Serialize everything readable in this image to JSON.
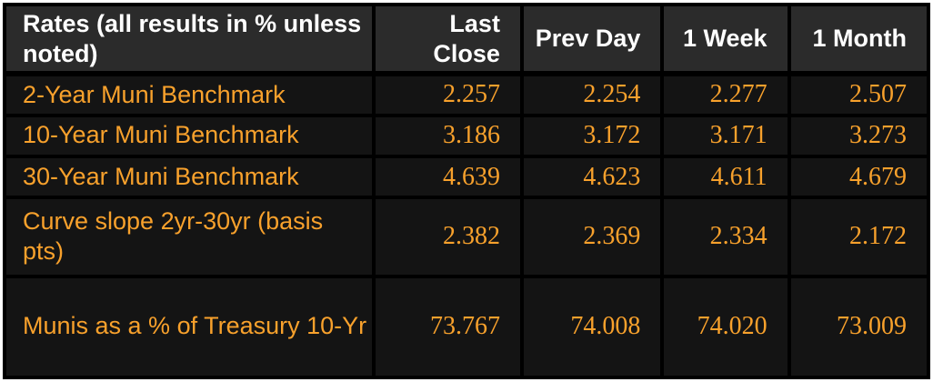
{
  "colors": {
    "outer_frame": "#ffffff",
    "header_bg": "#2b2b2b",
    "header_text": "#ffffff",
    "row_bg": "#141414",
    "cell_border": "#000000",
    "data_text": "#f8a12c"
  },
  "table": {
    "header": {
      "label": "Rates (all results in % unless noted)",
      "columns": [
        "Last Close",
        "Prev Day",
        "1 Week",
        "1 Month"
      ]
    },
    "rows": [
      {
        "label": "2-Year Muni Benchmark",
        "values": [
          "2.257",
          "2.254",
          "2.277",
          "2.507"
        ]
      },
      {
        "label": "10-Year Muni Benchmark",
        "values": [
          "3.186",
          "3.172",
          "3.171",
          "3.273"
        ]
      },
      {
        "label": "30-Year Muni Benchmark",
        "values": [
          "4.639",
          "4.623",
          "4.611",
          "4.679"
        ]
      },
      {
        "label": "Curve slope 2yr-30yr (basis pts)",
        "values": [
          "2.382",
          "2.369",
          "2.334",
          "2.172"
        ]
      },
      {
        "label": "Munis as a % of Treasury 10-Yr",
        "values": [
          "73.767",
          "74.008",
          "74.020",
          "73.009"
        ]
      }
    ]
  },
  "chart_data": {
    "type": "table",
    "title": "Rates (all results in % unless noted)",
    "columns": [
      "Rates (all results in % unless noted)",
      "Last Close",
      "Prev Day",
      "1 Week",
      "1 Month"
    ],
    "rows": [
      [
        "2-Year Muni Benchmark",
        2.257,
        2.254,
        2.277,
        2.507
      ],
      [
        "10-Year Muni Benchmark",
        3.186,
        3.172,
        3.171,
        3.273
      ],
      [
        "30-Year Muni Benchmark",
        4.639,
        4.623,
        4.611,
        4.679
      ],
      [
        "Curve slope 2yr-30yr (basis pts)",
        2.382,
        2.369,
        2.334,
        2.172
      ],
      [
        "Munis as a % of Treasury 10-Yr",
        73.767,
        74.008,
        74.02,
        73.009
      ]
    ]
  }
}
